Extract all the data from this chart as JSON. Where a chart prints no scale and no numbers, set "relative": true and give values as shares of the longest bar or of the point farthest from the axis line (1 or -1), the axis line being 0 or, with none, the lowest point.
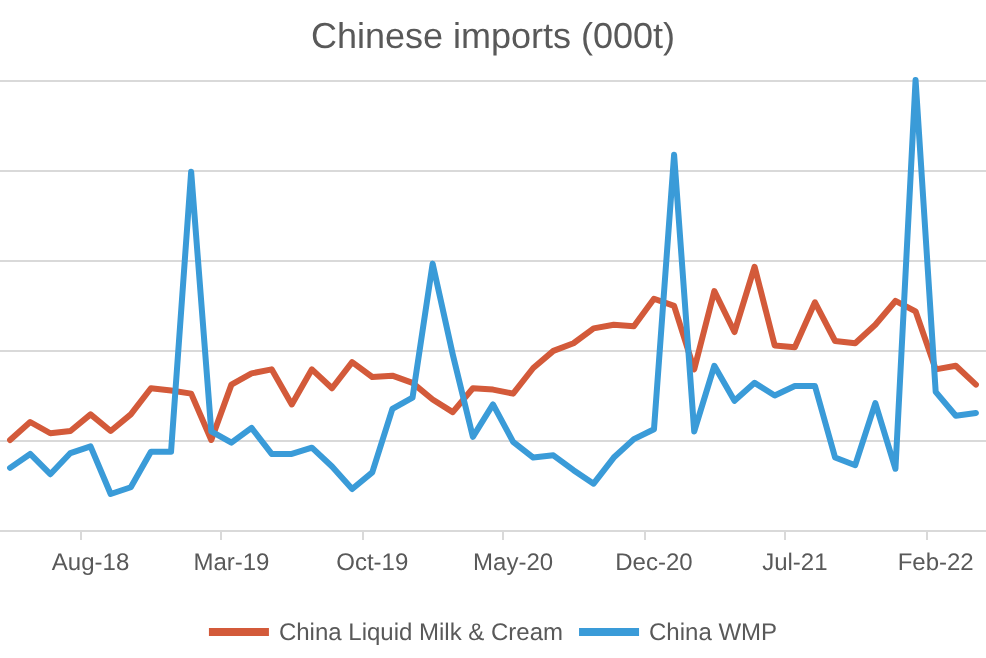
{
  "chart_data": {
    "type": "line",
    "title": "Chinese imports (000t)",
    "relative": true,
    "grid": "y",
    "legend": "bottom",
    "marker": "none",
    "line_style": "solid",
    "categories": [
      null,
      null,
      null,
      null,
      "Aug-18",
      null,
      null,
      null,
      null,
      null,
      null,
      "Mar-19",
      null,
      null,
      null,
      null,
      null,
      null,
      "Oct-19",
      null,
      null,
      null,
      null,
      null,
      null,
      "May-20",
      null,
      null,
      null,
      null,
      null,
      null,
      "Dec-20",
      null,
      null,
      null,
      null,
      null,
      null,
      "Jul-21",
      null,
      null,
      null,
      null,
      null,
      null,
      "Feb-22",
      null,
      null
    ],
    "series": [
      {
        "name": "China Liquid Milk & Cream",
        "color": "#d35a3a",
        "values": [
          0.2,
          0.24,
          0.215,
          0.22,
          0.257,
          0.22,
          0.257,
          0.315,
          0.31,
          0.303,
          0.2,
          0.323,
          0.348,
          0.357,
          0.279,
          0.357,
          0.315,
          0.373,
          0.34,
          0.343,
          0.327,
          0.29,
          0.262,
          0.315,
          0.312,
          0.303,
          0.36,
          0.398,
          0.415,
          0.448,
          0.456,
          0.453,
          0.514,
          0.498,
          0.357,
          0.531,
          0.44,
          0.585,
          0.41,
          0.406,
          0.506,
          0.42,
          0.415,
          0.456,
          0.509,
          0.486,
          0.357,
          0.365,
          0.323
        ]
      },
      {
        "name": "China WMP",
        "color": "#3a9bd8",
        "values": [
          0.138,
          0.169,
          0.124,
          0.171,
          0.186,
          0.08,
          0.095,
          0.174,
          0.174,
          0.796,
          0.219,
          0.194,
          0.227,
          0.169,
          0.169,
          0.183,
          0.141,
          0.091,
          0.128,
          0.269,
          0.294,
          0.592,
          0.39,
          0.207,
          0.279,
          0.196,
          0.161,
          0.166,
          0.133,
          0.103,
          0.161,
          0.202,
          0.224,
          0.834,
          0.219,
          0.365,
          0.287,
          0.327,
          0.299,
          0.32,
          0.32,
          0.161,
          0.144,
          0.282,
          0.136,
          1.0,
          0.307,
          0.254,
          0.26
        ]
      }
    ]
  }
}
